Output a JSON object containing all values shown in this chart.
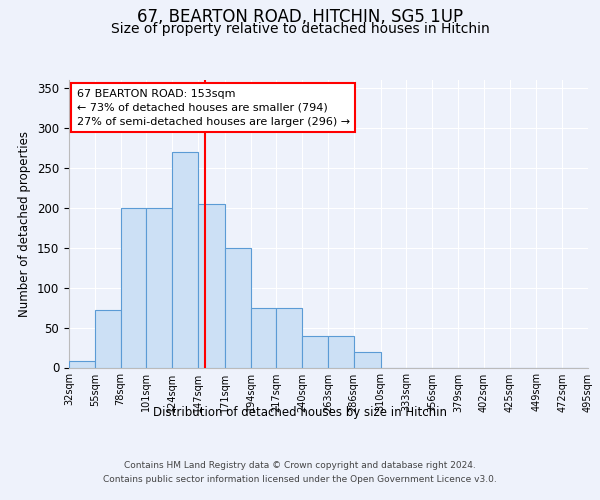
{
  "title": "67, BEARTON ROAD, HITCHIN, SG5 1UP",
  "subtitle": "Size of property relative to detached houses in Hitchin",
  "xlabel": "Distribution of detached houses by size in Hitchin",
  "ylabel": "Number of detached properties",
  "bar_edges": [
    32,
    55,
    78,
    101,
    124,
    147,
    171,
    194,
    217,
    240,
    263,
    286,
    310,
    333,
    356,
    379,
    402,
    425,
    449,
    472,
    495
  ],
  "bar_heights": [
    8,
    72,
    200,
    200,
    270,
    205,
    150,
    75,
    75,
    40,
    40,
    20,
    0,
    0,
    0,
    0,
    0,
    0,
    0,
    0
  ],
  "bar_facecolor": "#cce0f5",
  "bar_edgecolor": "#5b9bd5",
  "vline_x": 153,
  "vline_color": "red",
  "annotation_line1": "67 BEARTON ROAD: 153sqm",
  "annotation_line2": "← 73% of detached houses are smaller (794)",
  "annotation_line3": "27% of semi-detached houses are larger (296) →",
  "annotation_box_edgecolor": "red",
  "annotation_box_facecolor": "white",
  "ylim": [
    0,
    360
  ],
  "yticks": [
    0,
    50,
    100,
    150,
    200,
    250,
    300,
    350
  ],
  "tick_labels": [
    "32sqm",
    "55sqm",
    "78sqm",
    "101sqm",
    "124sqm",
    "147sqm",
    "171sqm",
    "194sqm",
    "217sqm",
    "240sqm",
    "263sqm",
    "286sqm",
    "310sqm",
    "333sqm",
    "356sqm",
    "379sqm",
    "402sqm",
    "425sqm",
    "449sqm",
    "472sqm",
    "495sqm"
  ],
  "footer": "Contains HM Land Registry data © Crown copyright and database right 2024.\nContains public sector information licensed under the Open Government Licence v3.0.",
  "bg_color": "#eef2fb",
  "plot_bg_color": "#eef2fb",
  "title_fontsize": 12,
  "subtitle_fontsize": 10
}
